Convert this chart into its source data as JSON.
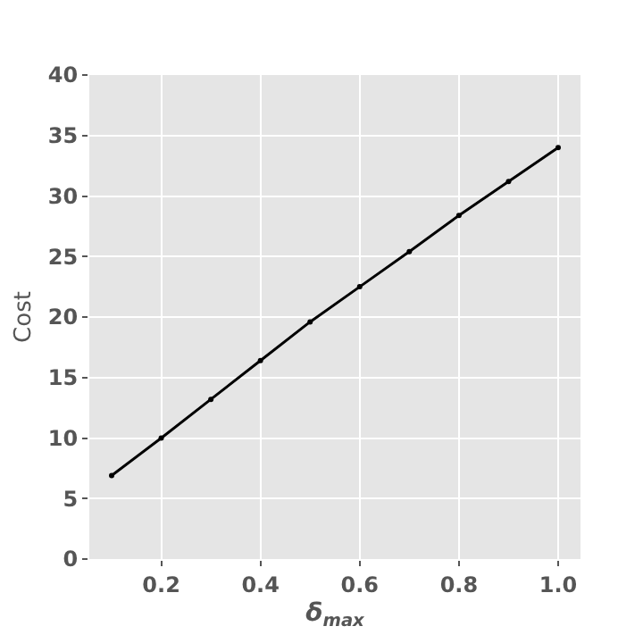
{
  "chart_data": {
    "type": "line",
    "xlabel": "δ$_{max}$",
    "ylabel": "Cost",
    "x": [
      0.1,
      0.2,
      0.3,
      0.4,
      0.5,
      0.6,
      0.7,
      0.8,
      0.9,
      1.0
    ],
    "series": [
      {
        "color": "#000000",
        "values": [
          6.9,
          10.0,
          13.2,
          16.4,
          19.6,
          22.5,
          25.4,
          28.4,
          31.2,
          34.0
        ]
      }
    ],
    "xlim": [
      0.055,
      1.045
    ],
    "xticks": [
      0.2,
      0.4,
      0.6,
      0.8,
      {
        "value": 1,
        "label": "1.0"
      }
    ],
    "ylim": [
      0,
      40
    ],
    "yticks": [
      0,
      5,
      10,
      15,
      20,
      25,
      30,
      35,
      40
    ],
    "grid": true,
    "marker": "circle",
    "line_style": "solid"
  }
}
